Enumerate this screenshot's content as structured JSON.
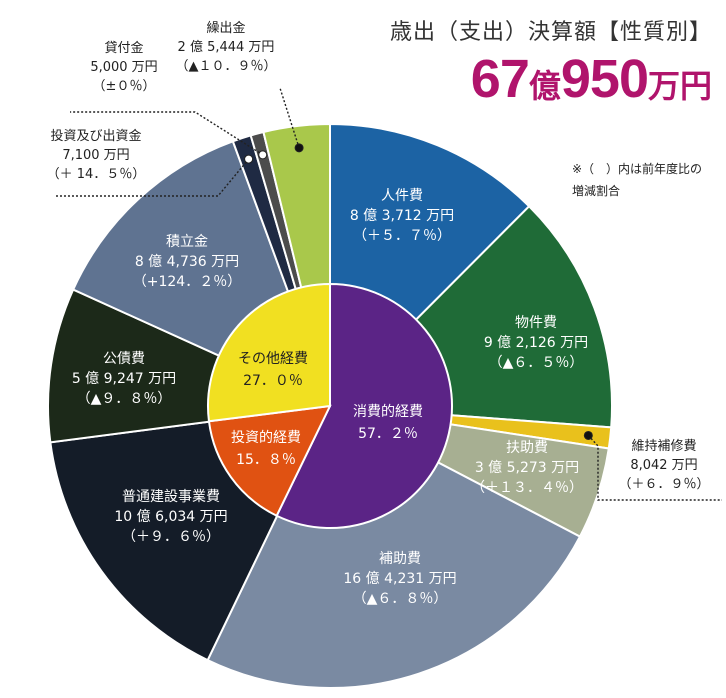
{
  "header": {
    "title": "歳出（支出）決算額【性質別】",
    "total_number_1": "67",
    "total_unit_1": "億",
    "total_number_2": "950",
    "total_unit_2": "万円"
  },
  "note": {
    "line1": "※（　）内は前年度比の",
    "line2": "増減割合"
  },
  "colors": {
    "jinkenhi": "#1c63a4",
    "bukkenhi": "#1f6b37",
    "iji": "#e9c11c",
    "fujo": "#a7af92",
    "hojo": "#7a8aa2",
    "fustu": "#141c28",
    "kosai": "#1c2919",
    "tsumitate": "#5f7391",
    "toshi": "#1f2a43",
    "kashitsuke": "#4c4c4c",
    "kuridashi": "#a9c84b",
    "inner_shohi": "#5b2486",
    "inner_toshi": "#e05212",
    "inner_sonota": "#f1e021"
  },
  "chart_data": {
    "type": "pie",
    "title": "歳出（支出）決算額【性質別】",
    "unit": "万円",
    "outer": [
      {
        "name": "人件費",
        "amount": "8 億 3,712 万円",
        "change": "（＋５．７％）",
        "value": 83712,
        "color_key": "jinkenhi"
      },
      {
        "name": "物件費",
        "amount": "9 億 2,126 万円",
        "change": "（▲６．５％）",
        "value": 92126,
        "color_key": "bukkenhi"
      },
      {
        "name": "維持補修費",
        "amount": "8,042 万円",
        "change": "（＋６．９％）",
        "value": 8042,
        "color_key": "iji"
      },
      {
        "name": "扶助費",
        "amount": "3 億 5,273 万円",
        "change": "（＋１３．４％）",
        "value": 35273,
        "color_key": "fujo"
      },
      {
        "name": "補助費",
        "amount": "16 億 4,231 万円",
        "change": "（▲６．８％）",
        "value": 164231,
        "color_key": "hojo"
      },
      {
        "name": "普通建設事業費",
        "amount": "10 億 6,034 万円",
        "change": "（＋９．６％）",
        "value": 106034,
        "color_key": "fustu"
      },
      {
        "name": "公債費",
        "amount": "5 億 9,247 万円",
        "change": "（▲９．８％）",
        "value": 59247,
        "color_key": "kosai"
      },
      {
        "name": "積立金",
        "amount": "8 億 4,736 万円",
        "change": "（+124．２％）",
        "value": 84736,
        "color_key": "tsumitate"
      },
      {
        "name": "投資及び出資金",
        "amount": "7,100 万円",
        "change": "（＋ 14．５％）",
        "value": 7100,
        "color_key": "toshi"
      },
      {
        "name": "貸付金",
        "amount": "5,000 万円",
        "change": "（±０％）",
        "value": 5000,
        "color_key": "kashitsuke"
      },
      {
        "name": "繰出金",
        "amount": "2 億 5,444 万円",
        "change": "（▲１０．９％）",
        "value": 25444,
        "color_key": "kuridashi"
      }
    ],
    "inner": [
      {
        "name": "消費的経費",
        "pct_label": "57．２％",
        "value": 57.2,
        "color_key": "inner_shohi"
      },
      {
        "name": "投資的経費",
        "pct_label": "15．８％",
        "value": 15.8,
        "color_key": "inner_toshi"
      },
      {
        "name": "その他経費",
        "pct_label": "27．０％",
        "value": 27.0,
        "color_key": "inner_sonota"
      }
    ]
  }
}
